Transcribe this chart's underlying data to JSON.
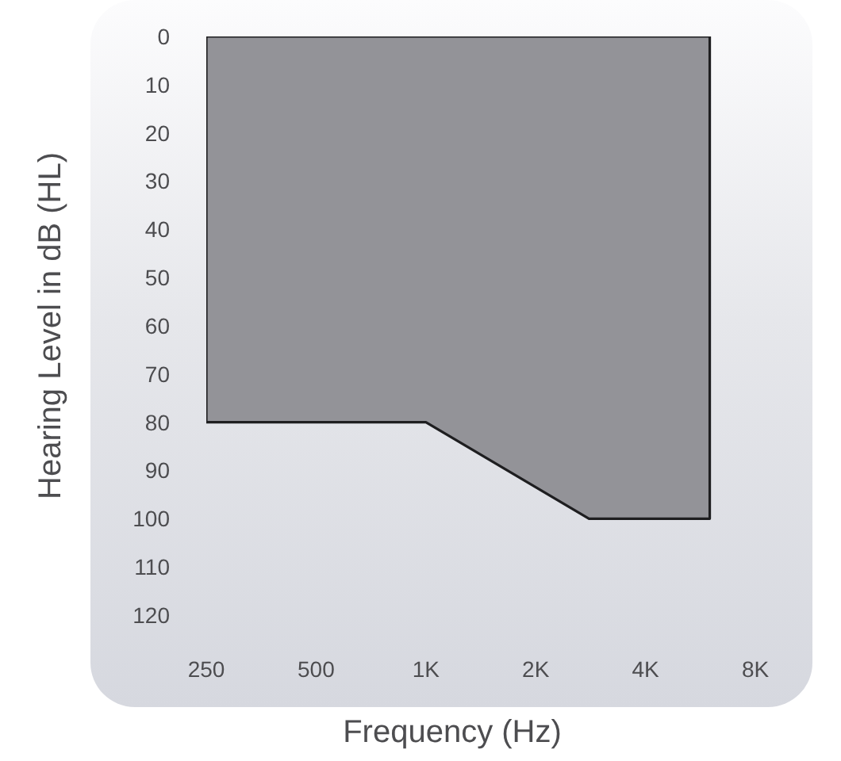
{
  "chart_data": {
    "type": "area",
    "xlabel": "Frequency (Hz)",
    "ylabel": "Hearing Level in dB (HL)",
    "x": [
      250,
      1000,
      2800,
      6000
    ],
    "values": [
      80,
      80,
      100,
      100
    ],
    "color": "#939398",
    "xlim": [
      250,
      8000
    ],
    "xticks": [
      250,
      500,
      {
        "value": 1000,
        "label": "1K"
      },
      {
        "value": 2000,
        "label": "2K"
      },
      {
        "value": 4000,
        "label": "4K"
      },
      {
        "value": 8000,
        "label": "8K"
      }
    ],
    "ylim": [
      120,
      0
    ],
    "yticks": [
      0,
      10,
      20,
      30,
      40,
      50,
      60,
      70,
      80,
      90,
      100,
      110,
      120
    ],
    "log": "x"
  }
}
